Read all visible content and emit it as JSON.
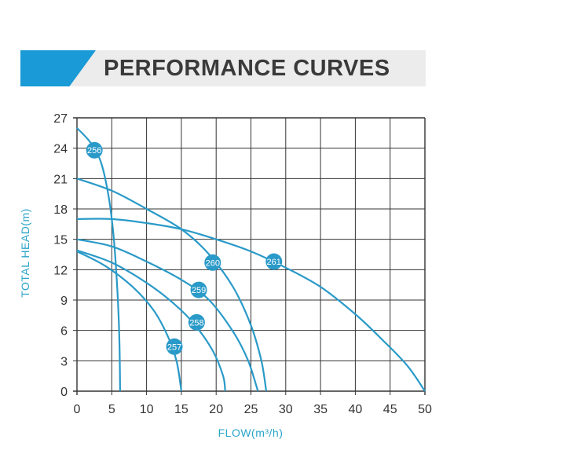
{
  "header": {
    "title": "PERFORMANCE CURVES"
  },
  "colors": {
    "accent": "#1a9ad6",
    "curve": "#2a9ac8",
    "grid": "#333333",
    "label": "#2aa4c8",
    "banner_bg": "#ececec"
  },
  "chart_data": {
    "type": "line",
    "title": "PERFORMANCE CURVES",
    "xlabel": "FLOW(m³/h)",
    "ylabel": "TOTAL HEAD(m)",
    "xlim": [
      0,
      50
    ],
    "ylim": [
      0,
      27
    ],
    "xticks": [
      0,
      5,
      10,
      15,
      20,
      25,
      30,
      35,
      40,
      45,
      50
    ],
    "yticks": [
      0,
      3,
      6,
      9,
      12,
      15,
      18,
      21,
      24,
      27
    ],
    "grid": true,
    "series": [
      {
        "name": "256",
        "label_at": [
          2.5,
          23.8
        ],
        "points": [
          [
            0,
            26
          ],
          [
            2,
            24.5
          ],
          [
            3.5,
            22.5
          ],
          [
            4.6,
            19
          ],
          [
            5.3,
            15
          ],
          [
            5.8,
            10
          ],
          [
            6.1,
            5
          ],
          [
            6.2,
            0
          ]
        ]
      },
      {
        "name": "257",
        "label_at": [
          14,
          4.4
        ],
        "points": [
          [
            0,
            13.8
          ],
          [
            4,
            12.4
          ],
          [
            8,
            10.3
          ],
          [
            11,
            8
          ],
          [
            13,
            5.5
          ],
          [
            14.3,
            3
          ],
          [
            15,
            0
          ]
        ]
      },
      {
        "name": "258",
        "label_at": [
          17.2,
          6.8
        ],
        "points": [
          [
            0,
            13.9
          ],
          [
            5,
            12.7
          ],
          [
            10,
            10.7
          ],
          [
            14,
            8.6
          ],
          [
            17,
            6.5
          ],
          [
            19.5,
            4
          ],
          [
            21,
            1.5
          ],
          [
            21.3,
            0
          ]
        ]
      },
      {
        "name": "259",
        "label_at": [
          17.5,
          10
        ],
        "points": [
          [
            0,
            15
          ],
          [
            5,
            14.3
          ],
          [
            10,
            12.8
          ],
          [
            15,
            11
          ],
          [
            19,
            9
          ],
          [
            22.5,
            5.8
          ],
          [
            24.6,
            3
          ],
          [
            26,
            0
          ]
        ]
      },
      {
        "name": "260",
        "label_at": [
          19.5,
          12.7
        ],
        "points": [
          [
            0,
            21
          ],
          [
            5,
            19.8
          ],
          [
            10,
            18
          ],
          [
            15,
            16
          ],
          [
            19,
            13.5
          ],
          [
            22.5,
            10.2
          ],
          [
            25,
            6.5
          ],
          [
            26.5,
            3
          ],
          [
            27.2,
            0
          ]
        ]
      },
      {
        "name": "261",
        "label_at": [
          28.3,
          12.8
        ],
        "points": [
          [
            0,
            17
          ],
          [
            5,
            17
          ],
          [
            10,
            16.6
          ],
          [
            15,
            16
          ],
          [
            20,
            15
          ],
          [
            25,
            13.8
          ],
          [
            30,
            12.2
          ],
          [
            35,
            10.3
          ],
          [
            40,
            7.6
          ],
          [
            44,
            5
          ],
          [
            47.5,
            2.5
          ],
          [
            50,
            0
          ]
        ]
      }
    ]
  }
}
